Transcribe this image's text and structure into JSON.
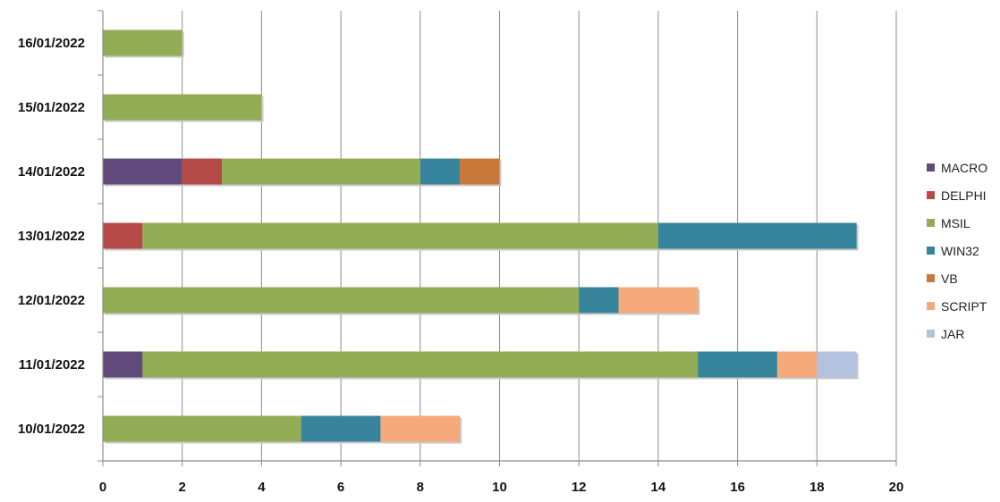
{
  "chart_data": {
    "type": "bar",
    "orientation": "horizontal",
    "stacked": true,
    "categories": [
      "10/01/2022",
      "11/01/2022",
      "12/01/2022",
      "13/01/2022",
      "14/01/2022",
      "15/01/2022",
      "16/01/2022"
    ],
    "series": [
      {
        "name": "MACRO",
        "color": "#604a7b",
        "values": [
          0,
          1,
          0,
          0,
          2,
          0,
          0
        ]
      },
      {
        "name": "DELPHI",
        "color": "#b54a48",
        "values": [
          0,
          0,
          0,
          1,
          1,
          0,
          0
        ]
      },
      {
        "name": "MSIL",
        "color": "#92ad55",
        "values": [
          5,
          14,
          12,
          13,
          5,
          4,
          2
        ]
      },
      {
        "name": "WIN32",
        "color": "#37859c",
        "values": [
          2,
          2,
          1,
          5,
          1,
          0,
          0
        ]
      },
      {
        "name": "VB",
        "color": "#c87838",
        "values": [
          0,
          0,
          0,
          0,
          1,
          0,
          0
        ]
      },
      {
        "name": "SCRIPT",
        "color": "#f6a97a",
        "values": [
          2,
          1,
          2,
          0,
          0,
          0,
          0
        ]
      },
      {
        "name": "JAR",
        "color": "#b4c2df",
        "values": [
          0,
          1,
          0,
          0,
          0,
          0,
          0
        ]
      }
    ],
    "xlim": [
      0,
      20
    ],
    "xticks": [
      "0",
      "2",
      "4",
      "6",
      "8",
      "10",
      "12",
      "14",
      "16",
      "18",
      "20"
    ],
    "grid": true,
    "legend": "right",
    "title": "",
    "xlabel": "",
    "ylabel": ""
  }
}
